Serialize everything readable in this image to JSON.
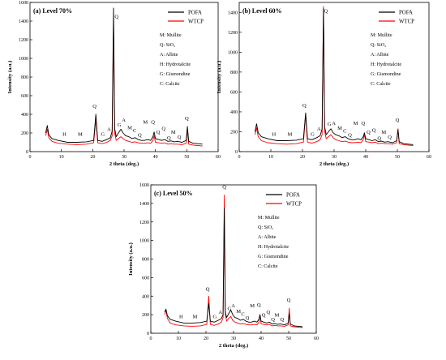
{
  "chart_data": [
    {
      "type": "line",
      "title": "(a) Level 70%",
      "xlabel": "2 theta (deg.)",
      "ylabel": "Intensity (a.u.)",
      "xlim": [
        0,
        60
      ],
      "ylim": [
        0,
        1600
      ],
      "xticks": [
        "0",
        "10",
        "20",
        "30",
        "40",
        "50",
        "60"
      ],
      "yticks": [
        "0",
        "200",
        "400",
        "600",
        "800",
        "1000",
        "1200",
        "1400",
        "1600"
      ],
      "legend": "top-right",
      "series": [
        {
          "name": "POFA",
          "color": "#000000",
          "x": [
            5.0,
            5.5,
            6.0,
            7.0,
            9.0,
            12.0,
            15.0,
            18.0,
            20.3,
            21.0,
            21.6,
            23.0,
            24.5,
            25.6,
            26.2,
            26.65,
            27.0,
            27.5,
            28.2,
            29.0,
            29.7,
            30.5,
            31.5,
            32.5,
            33.5,
            34.5,
            35.5,
            36.5,
            37.5,
            38.5,
            39.2,
            39.6,
            40.0,
            41.0,
            42.0,
            43.0,
            44.0,
            45.0,
            46.0,
            47.0,
            48.5,
            49.8,
            50.2,
            50.6,
            52.0,
            53.5,
            55.0
          ],
          "y": [
            200,
            280,
            180,
            140,
            120,
            100,
            100,
            105,
            120,
            400,
            120,
            110,
            130,
            150,
            220,
            1540,
            250,
            160,
            200,
            240,
            200,
            170,
            160,
            140,
            150,
            130,
            120,
            120,
            130,
            120,
            160,
            210,
            140,
            130,
            120,
            130,
            110,
            115,
            105,
            110,
            100,
            120,
            270,
            110,
            90,
            85,
            80
          ]
        },
        {
          "name": "WTCP",
          "color": "#ff0000",
          "x": [
            5.0,
            5.5,
            6.0,
            7.0,
            9.0,
            12.0,
            15.0,
            18.0,
            20.3,
            21.0,
            21.6,
            23.0,
            24.5,
            25.6,
            26.2,
            26.65,
            27.0,
            27.5,
            28.2,
            29.0,
            29.7,
            30.5,
            31.5,
            32.5,
            33.5,
            34.5,
            35.5,
            36.5,
            37.5,
            38.5,
            39.2,
            39.6,
            40.0,
            41.0,
            42.0,
            43.0,
            44.0,
            45.0,
            46.0,
            47.0,
            48.5,
            49.8,
            50.2,
            50.6,
            52.0,
            53.5,
            55.0
          ],
          "y": [
            170,
            240,
            150,
            110,
            90,
            80,
            75,
            80,
            95,
            350,
            95,
            85,
            100,
            120,
            170,
            1360,
            200,
            120,
            140,
            160,
            140,
            120,
            110,
            100,
            105,
            95,
            90,
            90,
            95,
            90,
            120,
            170,
            100,
            95,
            90,
            95,
            80,
            85,
            80,
            80,
            75,
            90,
            230,
            80,
            70,
            65,
            60
          ]
        }
      ],
      "peak_labels": [
        {
          "text": "H",
          "x": 11,
          "y": 170
        },
        {
          "text": "M",
          "x": 16,
          "y": 170
        },
        {
          "text": "Q",
          "x": 20.6,
          "y": 470
        },
        {
          "text": "G",
          "x": 23.2,
          "y": 170
        },
        {
          "text": "A",
          "x": 25.2,
          "y": 220
        },
        {
          "text": "Q",
          "x": 27.6,
          "y": 1430
        },
        {
          "text": "G",
          "x": 28.5,
          "y": 270
        },
        {
          "text": "A",
          "x": 29.9,
          "y": 320
        },
        {
          "text": "M",
          "x": 31.8,
          "y": 240
        },
        {
          "text": "C",
          "x": 33.4,
          "y": 210
        },
        {
          "text": "Q",
          "x": 35.0,
          "y": 160
        },
        {
          "text": "M",
          "x": 36.8,
          "y": 300
        },
        {
          "text": "Q",
          "x": 39.2,
          "y": 300
        },
        {
          "text": "Q",
          "x": 40.9,
          "y": 190
        },
        {
          "text": "Q",
          "x": 42.6,
          "y": 230
        },
        {
          "text": "Q",
          "x": 44.3,
          "y": 130
        },
        {
          "text": "M",
          "x": 45.7,
          "y": 190
        },
        {
          "text": "Q",
          "x": 47.6,
          "y": 140
        },
        {
          "text": "Q",
          "x": 50.0,
          "y": 340
        }
      ]
    },
    {
      "type": "line",
      "title": "(b) Level 60%",
      "xlabel": "2 theta (deg.)",
      "ylabel": "Intensity (a.u.)",
      "xlim": [
        0,
        60
      ],
      "ylim": [
        0,
        1500
      ],
      "xticks": [
        "0",
        "10",
        "20",
        "30",
        "40",
        "50",
        "60"
      ],
      "yticks": [
        "0",
        "200",
        "400",
        "600",
        "800",
        "1000",
        "1200",
        "1400"
      ],
      "legend": "top-right",
      "series": [
        {
          "name": "POFA",
          "color": "#000000",
          "x": [
            5.0,
            5.5,
            6.0,
            7.0,
            9.0,
            12.0,
            15.0,
            18.0,
            20.3,
            21.0,
            21.6,
            23.0,
            24.5,
            25.6,
            26.2,
            26.65,
            27.0,
            27.5,
            28.2,
            29.0,
            29.7,
            30.5,
            31.5,
            32.5,
            33.5,
            34.5,
            35.5,
            36.5,
            37.5,
            38.5,
            39.2,
            39.6,
            40.0,
            41.0,
            42.0,
            43.0,
            44.0,
            45.0,
            46.0,
            47.0,
            48.5,
            49.8,
            50.2,
            50.6,
            52.0,
            53.5,
            55.0
          ],
          "y": [
            200,
            280,
            190,
            150,
            130,
            110,
            110,
            115,
            130,
            390,
            130,
            120,
            140,
            160,
            230,
            1440,
            250,
            170,
            200,
            230,
            190,
            170,
            160,
            140,
            150,
            130,
            120,
            120,
            130,
            120,
            150,
            190,
            130,
            120,
            110,
            120,
            100,
            105,
            95,
            100,
            90,
            110,
            220,
            100,
            80,
            75,
            70
          ]
        },
        {
          "name": "WTCP",
          "color": "#ff0000",
          "x": [
            5.0,
            5.5,
            6.0,
            7.0,
            9.0,
            12.0,
            15.0,
            18.0,
            20.3,
            21.0,
            21.6,
            23.0,
            24.5,
            25.6,
            26.2,
            26.65,
            27.0,
            27.5,
            28.2,
            29.0,
            29.7,
            30.5,
            31.5,
            32.5,
            33.5,
            34.5,
            35.5,
            36.5,
            37.5,
            38.5,
            39.2,
            39.6,
            40.0,
            41.0,
            42.0,
            43.0,
            44.0,
            45.0,
            46.0,
            47.0,
            48.5,
            49.8,
            50.2,
            50.6,
            52.0,
            53.5,
            55.0
          ],
          "y": [
            170,
            240,
            150,
            110,
            90,
            80,
            75,
            80,
            95,
            370,
            95,
            85,
            100,
            120,
            170,
            1460,
            210,
            130,
            150,
            170,
            140,
            120,
            110,
            100,
            105,
            95,
            90,
            90,
            95,
            90,
            120,
            170,
            100,
            95,
            90,
            95,
            80,
            85,
            80,
            80,
            75,
            90,
            230,
            80,
            70,
            65,
            60
          ]
        }
      ],
      "peak_labels": [
        {
          "text": "H",
          "x": 11,
          "y": 160
        },
        {
          "text": "M",
          "x": 16,
          "y": 160
        },
        {
          "text": "Q",
          "x": 20.6,
          "y": 450
        },
        {
          "text": "G",
          "x": 23.2,
          "y": 160
        },
        {
          "text": "A",
          "x": 25.2,
          "y": 210
        },
        {
          "text": "Q",
          "x": 27.4,
          "y": 1400
        },
        {
          "text": "G",
          "x": 28.5,
          "y": 260
        },
        {
          "text": "A",
          "x": 29.9,
          "y": 270
        },
        {
          "text": "M",
          "x": 31.8,
          "y": 220
        },
        {
          "text": "C",
          "x": 33.4,
          "y": 190
        },
        {
          "text": "Q",
          "x": 35.0,
          "y": 150
        },
        {
          "text": "M",
          "x": 36.8,
          "y": 270
        },
        {
          "text": "Q",
          "x": 39.2,
          "y": 270
        },
        {
          "text": "Q",
          "x": 40.9,
          "y": 180
        },
        {
          "text": "Q",
          "x": 42.6,
          "y": 200
        },
        {
          "text": "Q",
          "x": 44.3,
          "y": 120
        },
        {
          "text": "M",
          "x": 45.7,
          "y": 180
        },
        {
          "text": "Q",
          "x": 47.6,
          "y": 130
        },
        {
          "text": "Q",
          "x": 50.0,
          "y": 300
        }
      ]
    },
    {
      "type": "line",
      "title": "(c) Level 50%",
      "xlabel": "2 theta (deg.)",
      "ylabel": "Intensity (a.u.)",
      "xlim": [
        0,
        60
      ],
      "ylim": [
        0,
        1600
      ],
      "xticks": [
        "0",
        "10",
        "20",
        "30",
        "40",
        "50",
        "60"
      ],
      "yticks": [
        "0",
        "200",
        "400",
        "600",
        "800",
        "1000",
        "1200",
        "1400",
        "1600"
      ],
      "legend": "top-right",
      "series": [
        {
          "name": "POFA",
          "color": "#000000",
          "x": [
            5.0,
            5.5,
            6.0,
            7.0,
            9.0,
            12.0,
            15.0,
            18.0,
            20.3,
            21.0,
            21.6,
            23.0,
            24.5,
            25.6,
            26.2,
            26.65,
            27.0,
            27.5,
            28.2,
            29.0,
            29.7,
            30.5,
            31.5,
            32.5,
            33.5,
            34.5,
            35.5,
            36.5,
            37.5,
            38.5,
            39.2,
            39.6,
            40.0,
            41.0,
            42.0,
            43.0,
            44.0,
            45.0,
            46.0,
            47.0,
            48.5,
            49.8,
            50.2,
            50.6,
            52.0,
            53.5,
            55.0
          ],
          "y": [
            230,
            260,
            190,
            150,
            130,
            110,
            110,
            115,
            130,
            320,
            130,
            120,
            140,
            160,
            200,
            1350,
            230,
            170,
            210,
            250,
            200,
            170,
            160,
            140,
            150,
            130,
            120,
            120,
            130,
            120,
            150,
            200,
            130,
            120,
            110,
            120,
            100,
            105,
            95,
            100,
            90,
            110,
            210,
            100,
            80,
            75,
            70
          ]
        },
        {
          "name": "WTCP",
          "color": "#ff0000",
          "x": [
            5.0,
            5.5,
            6.0,
            7.0,
            9.0,
            12.0,
            15.0,
            18.0,
            20.3,
            21.0,
            21.6,
            23.0,
            24.5,
            25.6,
            26.2,
            26.65,
            27.0,
            27.5,
            28.2,
            29.0,
            29.7,
            30.5,
            31.5,
            32.5,
            33.5,
            34.5,
            35.5,
            36.5,
            37.5,
            38.5,
            39.2,
            39.6,
            40.0,
            41.0,
            42.0,
            43.0,
            44.0,
            45.0,
            46.0,
            47.0,
            48.5,
            49.8,
            50.2,
            50.6,
            52.0,
            53.5,
            55.0
          ],
          "y": [
            200,
            250,
            160,
            110,
            90,
            80,
            75,
            80,
            95,
            400,
            95,
            85,
            100,
            120,
            170,
            1490,
            210,
            130,
            160,
            180,
            140,
            120,
            110,
            100,
            105,
            95,
            90,
            90,
            95,
            90,
            120,
            200,
            100,
            95,
            90,
            95,
            80,
            85,
            80,
            80,
            75,
            90,
            270,
            80,
            70,
            65,
            60
          ]
        }
      ],
      "peak_labels": [
        {
          "text": "H",
          "x": 11,
          "y": 160
        },
        {
          "text": "M",
          "x": 16,
          "y": 160
        },
        {
          "text": "Q",
          "x": 20.6,
          "y": 460
        },
        {
          "text": "G",
          "x": 23.2,
          "y": 160
        },
        {
          "text": "A",
          "x": 25.2,
          "y": 210
        },
        {
          "text": "Q",
          "x": 26.65,
          "y": 1560
        },
        {
          "text": "G",
          "x": 28.5,
          "y": 250
        },
        {
          "text": "A",
          "x": 29.9,
          "y": 280
        },
        {
          "text": "M",
          "x": 31.8,
          "y": 220
        },
        {
          "text": "C",
          "x": 33.4,
          "y": 190
        },
        {
          "text": "Q",
          "x": 35.0,
          "y": 150
        },
        {
          "text": "M",
          "x": 36.8,
          "y": 280
        },
        {
          "text": "Q",
          "x": 39.2,
          "y": 290
        },
        {
          "text": "Q",
          "x": 40.9,
          "y": 180
        },
        {
          "text": "Q",
          "x": 42.6,
          "y": 210
        },
        {
          "text": "Q",
          "x": 44.3,
          "y": 130
        },
        {
          "text": "M",
          "x": 45.7,
          "y": 180
        },
        {
          "text": "Q",
          "x": 47.6,
          "y": 130
        },
        {
          "text": "Q",
          "x": 50.0,
          "y": 340
        }
      ]
    }
  ],
  "phase_key": [
    "M: Mullite",
    "Q: SiO₂",
    "A: Albite",
    "H: Hydrotalcite",
    "G: Gismondine",
    "C: Calcite"
  ]
}
